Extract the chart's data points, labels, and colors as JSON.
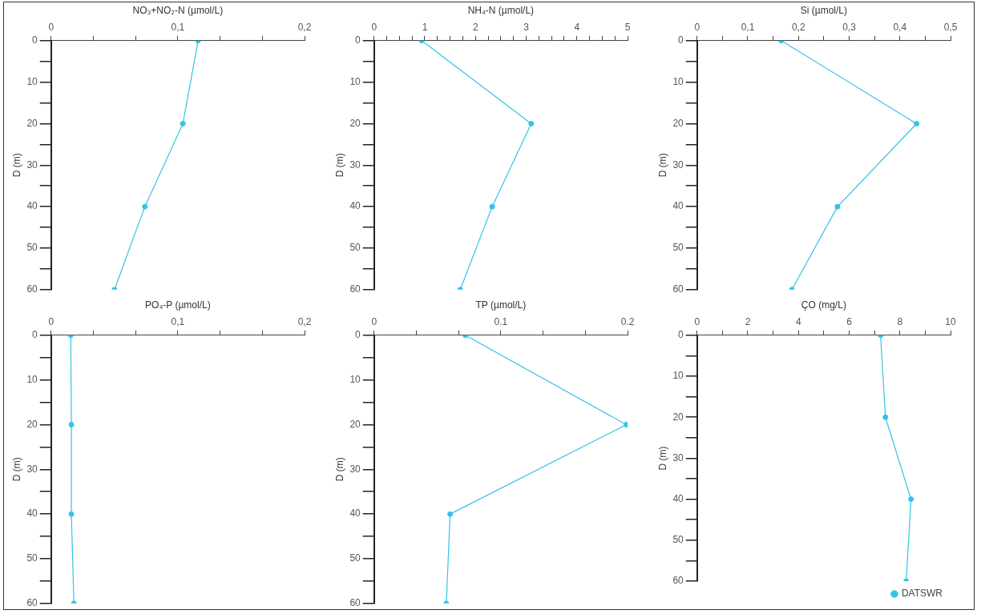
{
  "chart_data": [
    {
      "type": "line",
      "xlabel": "NO₃+NO₂-N (µmol/L)",
      "ylabel": "D (m)",
      "xlim": [
        0,
        0.2
      ],
      "xticks": [
        0,
        {
          "value": 0.0333,
          "label": null
        },
        {
          "value": 0.0667,
          "label": null
        },
        {
          "value": 0.1,
          "label": "0,1"
        },
        {
          "value": 0.1333,
          "label": null
        },
        {
          "value": 0.1667,
          "label": null
        },
        {
          "value": 0.2,
          "label": "0,2"
        }
      ],
      "ylim": [
        60,
        0
      ],
      "yticks": [
        0,
        {
          "value": 5,
          "label": null
        },
        10,
        {
          "value": 15,
          "label": null
        },
        20,
        {
          "value": 25,
          "label": null
        },
        30,
        {
          "value": 35,
          "label": null
        },
        40,
        {
          "value": 45,
          "label": null
        },
        50,
        {
          "value": 55,
          "label": null
        },
        60
      ],
      "marker": "circle",
      "line_style": "solid",
      "series": [
        {
          "color": "#33c3e8",
          "x": [
            0.116,
            0.104,
            0.074,
            0.05
          ],
          "values": [
            0,
            20,
            40,
            60
          ]
        }
      ]
    },
    {
      "type": "line",
      "xlabel": "NH₄-N (µmol/L)",
      "ylabel": "D (m)",
      "xlim": [
        0,
        5
      ],
      "xticks": [
        0,
        {
          "value": 0.25,
          "label": null
        },
        {
          "value": 0.5,
          "label": null
        },
        {
          "value": 0.75,
          "label": null
        },
        1,
        {
          "value": 1.25,
          "label": null
        },
        {
          "value": 1.5,
          "label": null
        },
        {
          "value": 1.75,
          "label": null
        },
        2,
        {
          "value": 2.25,
          "label": null
        },
        {
          "value": 2.5,
          "label": null
        },
        {
          "value": 2.75,
          "label": null
        },
        3,
        {
          "value": 3.25,
          "label": null
        },
        {
          "value": 3.5,
          "label": null
        },
        {
          "value": 3.75,
          "label": null
        },
        4,
        {
          "value": 4.25,
          "label": null
        },
        {
          "value": 4.5,
          "label": null
        },
        {
          "value": 4.75,
          "label": null
        },
        5
      ],
      "ylim": [
        60,
        0
      ],
      "yticks": [
        0,
        {
          "value": 5,
          "label": null
        },
        10,
        {
          "value": 15,
          "label": null
        },
        20,
        {
          "value": 25,
          "label": null
        },
        30,
        {
          "value": 35,
          "label": null
        },
        40,
        {
          "value": 45,
          "label": null
        },
        50,
        {
          "value": 55,
          "label": null
        },
        60
      ],
      "marker": "circle",
      "line_style": "solid",
      "series": [
        {
          "color": "#33c3e8",
          "x": [
            0.94,
            3.1,
            2.33,
            1.7
          ],
          "values": [
            0,
            20,
            40,
            60
          ]
        }
      ]
    },
    {
      "type": "line",
      "xlabel": "Si (µmol/L)",
      "ylabel": "D (m)",
      "xlim": [
        0,
        0.5
      ],
      "xticks": [
        0,
        {
          "value": 0.05,
          "label": null
        },
        {
          "value": 0.1,
          "label": "0,1"
        },
        {
          "value": 0.15,
          "label": null
        },
        {
          "value": 0.2,
          "label": "0,2"
        },
        {
          "value": 0.25,
          "label": null
        },
        {
          "value": 0.3,
          "label": "0,3"
        },
        {
          "value": 0.35,
          "label": null
        },
        {
          "value": 0.4,
          "label": "0,4"
        },
        {
          "value": 0.45,
          "label": null
        },
        {
          "value": 0.5,
          "label": "0,5"
        }
      ],
      "ylim": [
        60,
        0
      ],
      "yticks": [
        0,
        {
          "value": 5,
          "label": null
        },
        10,
        {
          "value": 15,
          "label": null
        },
        20,
        {
          "value": 25,
          "label": null
        },
        30,
        {
          "value": 35,
          "label": null
        },
        40,
        {
          "value": 45,
          "label": null
        },
        50,
        {
          "value": 55,
          "label": null
        },
        60
      ],
      "marker": "circle",
      "line_style": "solid",
      "series": [
        {
          "color": "#33c3e8",
          "x": [
            0.166,
            0.433,
            0.277,
            0.187
          ],
          "values": [
            0,
            20,
            40,
            60
          ]
        }
      ]
    },
    {
      "type": "line",
      "xlabel": "PO₄-P (µmol/L)",
      "ylabel": "D (m)",
      "xlim": [
        0,
        0.2
      ],
      "xticks": [
        0,
        {
          "value": 0.0333,
          "label": null
        },
        {
          "value": 0.0667,
          "label": null
        },
        {
          "value": 0.1,
          "label": "0,1"
        },
        {
          "value": 0.1333,
          "label": null
        },
        {
          "value": 0.1667,
          "label": null
        },
        {
          "value": 0.2,
          "label": "0,2"
        }
      ],
      "ylim": [
        60,
        0
      ],
      "yticks": [
        0,
        {
          "value": 5,
          "label": null
        },
        10,
        {
          "value": 15,
          "label": null
        },
        20,
        {
          "value": 25,
          "label": null
        },
        30,
        {
          "value": 35,
          "label": null
        },
        40,
        {
          "value": 45,
          "label": null
        },
        50,
        {
          "value": 55,
          "label": null
        },
        60
      ],
      "marker": "circle",
      "line_style": "solid",
      "series": [
        {
          "color": "#33c3e8",
          "x": [
            0.0155,
            0.016,
            0.016,
            0.018
          ],
          "values": [
            0,
            20,
            40,
            60
          ]
        }
      ]
    },
    {
      "type": "line",
      "xlabel": "TP (µmol/L)",
      "ylabel": "D (m)",
      "xlim": [
        0,
        0.2
      ],
      "xticks": [
        0,
        {
          "value": 0.0333,
          "label": null
        },
        {
          "value": 0.0667,
          "label": null
        },
        {
          "value": 0.1,
          "label": "0.1"
        },
        {
          "value": 0.1333,
          "label": null
        },
        {
          "value": 0.1667,
          "label": null
        },
        {
          "value": 0.2,
          "label": "0.2"
        }
      ],
      "ylim": [
        60,
        0
      ],
      "yticks": [
        0,
        {
          "value": 5,
          "label": null
        },
        10,
        {
          "value": 15,
          "label": null
        },
        20,
        {
          "value": 25,
          "label": null
        },
        30,
        {
          "value": 35,
          "label": null
        },
        40,
        {
          "value": 45,
          "label": null
        },
        50,
        {
          "value": 55,
          "label": null
        },
        60
      ],
      "marker": "circle",
      "line_style": "solid",
      "series": [
        {
          "color": "#33c3e8",
          "x": [
            0.072,
            0.199,
            0.06,
            0.057
          ],
          "values": [
            0,
            20,
            40,
            60
          ]
        }
      ]
    },
    {
      "type": "line",
      "xlabel": "ÇO (mg/L)",
      "ylabel": "D (m)",
      "xlim": [
        0,
        10
      ],
      "xticks": [
        0,
        {
          "value": 1,
          "label": null
        },
        2,
        {
          "value": 3,
          "label": null
        },
        4,
        {
          "value": 5,
          "label": null
        },
        6,
        {
          "value": 7,
          "label": null
        },
        8,
        {
          "value": 9,
          "label": null
        },
        10
      ],
      "ylim": [
        60,
        0
      ],
      "yticks": [
        0,
        {
          "value": 5,
          "label": null
        },
        10,
        {
          "value": 15,
          "label": null
        },
        20,
        {
          "value": 25,
          "label": null
        },
        30,
        {
          "value": 35,
          "label": null
        },
        40,
        {
          "value": 45,
          "label": null
        },
        50,
        {
          "value": 55,
          "label": null
        },
        60
      ],
      "marker": "circle",
      "line_style": "solid",
      "legend": "bottom right",
      "series": [
        {
          "name": "DATSWR",
          "color": "#33c3e8",
          "x": [
            7.24,
            7.43,
            8.44,
            8.25
          ],
          "values": [
            0,
            20,
            40,
            60
          ]
        }
      ]
    }
  ]
}
